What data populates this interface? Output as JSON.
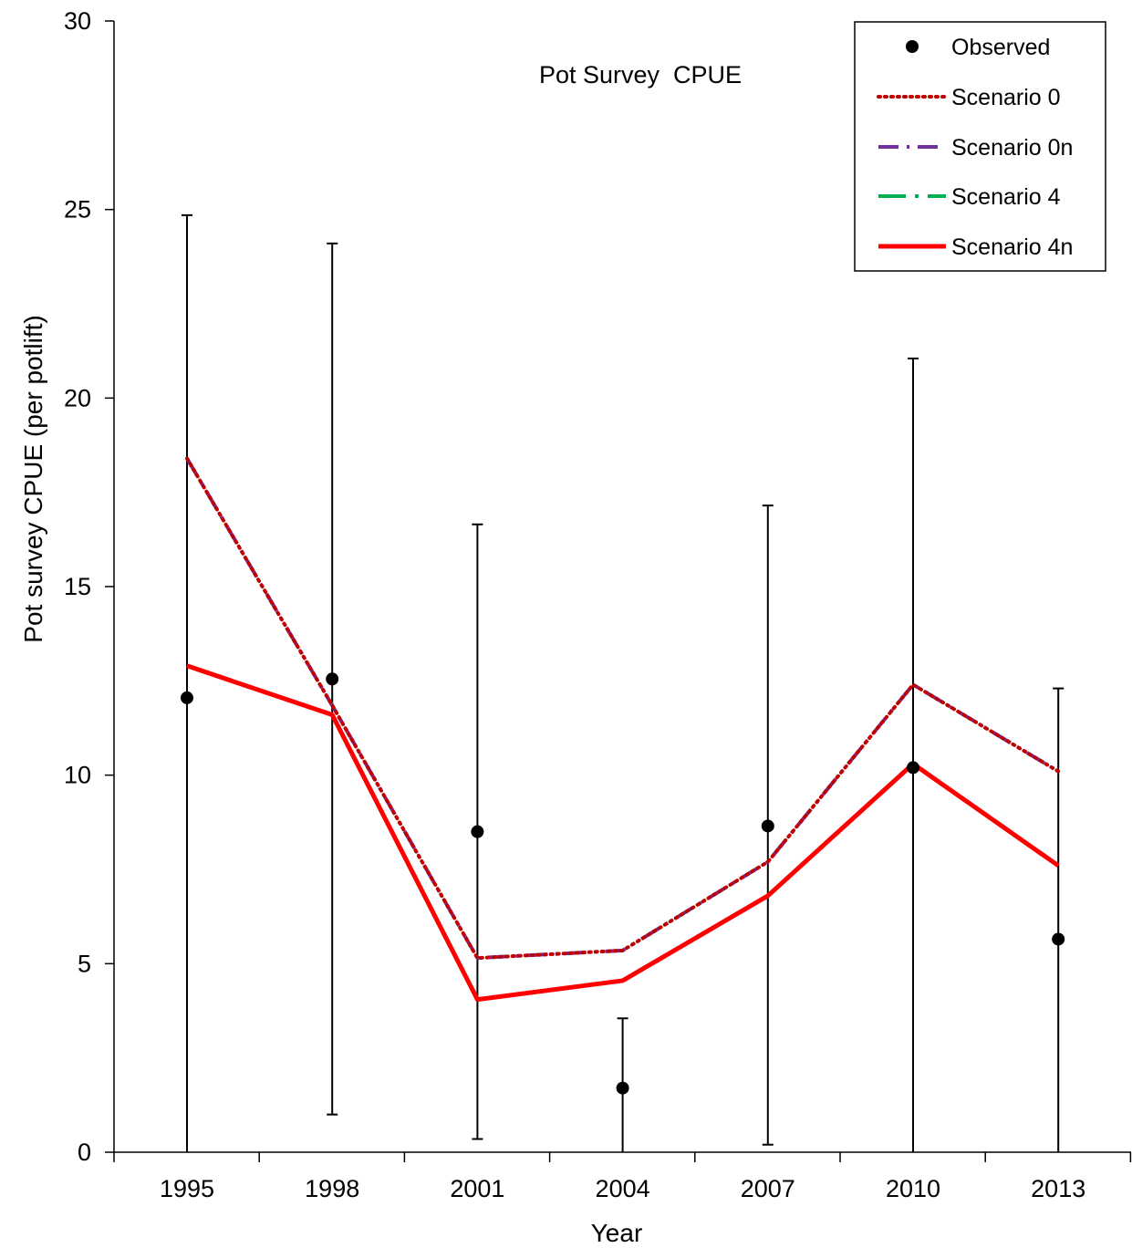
{
  "chart_data": {
    "type": "line",
    "title": "Pot Survey  CPUE",
    "xlabel": "Year",
    "ylabel": "Pot survey CPUE (per potlift)",
    "x_categories": [
      "1995",
      "1998",
      "2001",
      "2004",
      "2007",
      "2010",
      "2013"
    ],
    "ylim": [
      0,
      30
    ],
    "y_ticks": [
      0,
      5,
      10,
      15,
      20,
      25,
      30
    ],
    "grid": false,
    "legend_position": "top-right",
    "observed": {
      "name": "Observed",
      "color": "#000000",
      "values": [
        12.05,
        12.55,
        8.5,
        1.7,
        8.65,
        10.2,
        5.65
      ],
      "lower": [
        0,
        1.0,
        0.35,
        0,
        0.2,
        0,
        0
      ],
      "upper": [
        24.85,
        24.1,
        16.65,
        3.55,
        17.15,
        21.05,
        12.3
      ]
    },
    "series": [
      {
        "name": "Scenario 0",
        "style": "dotted",
        "color": "#c00000",
        "values": [
          18.4,
          11.85,
          5.15,
          5.35,
          7.7,
          12.4,
          10.1
        ]
      },
      {
        "name": "Scenario 0n",
        "style": "dashdot",
        "color": "#7030a0",
        "values": [
          18.4,
          11.85,
          5.15,
          5.35,
          7.7,
          12.4,
          10.1
        ]
      },
      {
        "name": "Scenario 4",
        "style": "dashdot-long",
        "color": "#00b050",
        "values": [
          12.9,
          11.6,
          4.05,
          4.55,
          6.8,
          10.3,
          7.6
        ]
      },
      {
        "name": "Scenario 4n",
        "style": "solid",
        "color": "#ff0000",
        "values": [
          12.9,
          11.6,
          4.05,
          4.55,
          6.8,
          10.3,
          7.6
        ]
      }
    ]
  }
}
